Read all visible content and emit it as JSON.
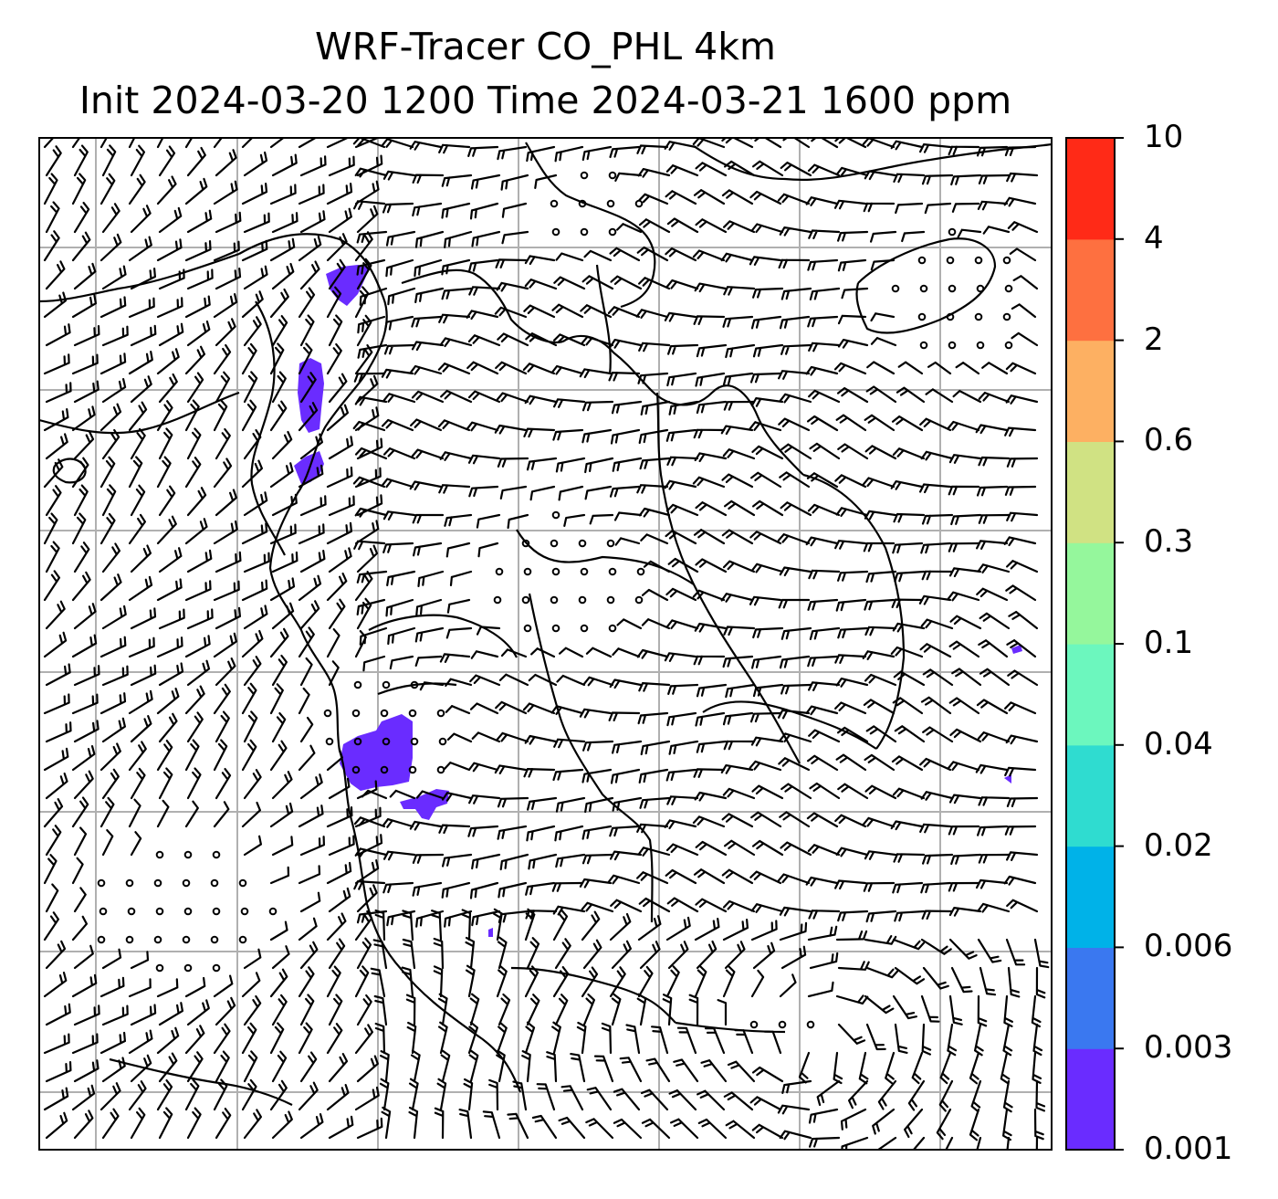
{
  "title": {
    "line1": "WRF-Tracer CO_PHL 4km",
    "line2": "Init 2024-03-20 1200 Time 2024-03-21 1600 ppm"
  },
  "colorbar": {
    "levels": [
      "0.001",
      "0.003",
      "0.006",
      "0.02",
      "0.04",
      "0.1",
      "0.3",
      "0.6",
      "2",
      "4",
      "10"
    ],
    "colors": [
      "#6a2cff",
      "#3a78f0",
      "#00b2e8",
      "#2fdcd0",
      "#6cf7be",
      "#95f79c",
      "#d0e283",
      "#fdb062",
      "#fe7040",
      "#ff2a17"
    ]
  },
  "map": {
    "overlays": [
      "coastlines",
      "state-borders",
      "gridlines",
      "wind-barbs",
      "tracer-shading"
    ],
    "tracer_color": "#6a2cff"
  }
}
